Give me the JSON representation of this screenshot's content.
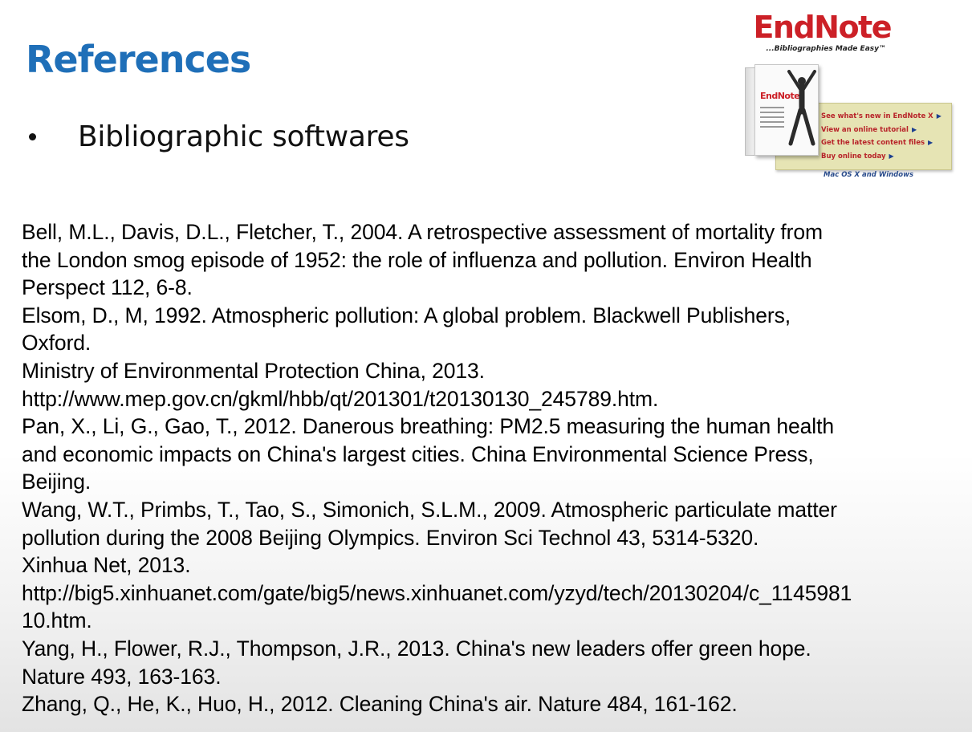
{
  "slide": {
    "title": "References",
    "bullet": "Bibliographic softwares"
  },
  "references": [
    "Bell, M.L., Davis, D.L., Fletcher, T., 2004. A retrospective assessment of mortality from",
    "the London smog episode of 1952: the role of influenza and pollution. Environ Health",
    "Perspect 112, 6-8.",
    "Elsom, D., M, 1992. Atmospheric pollution: A global problem. Blackwell Publishers,",
    "Oxford.",
    "Ministry of Environmental Protection China, 2013.",
    "http://www.mep.gov.cn/gkml/hbb/qt/201301/t20130130_245789.htm.",
    "Pan, X., Li, G., Gao, T., 2012. Danerous breathing: PM2.5 measuring the human health",
    "and economic impacts on China's largest cities. China Environmental Science Press,",
    "Beijing.",
    "Wang, W.T., Primbs, T., Tao, S., Simonich, S.L.M., 2009. Atmospheric particulate matter",
    "pollution during the 2008 Beijing Olympics. Environ Sci Technol 43, 5314-5320.",
    "Xinhua Net, 2013.",
    "http://big5.xinhuanet.com/gate/big5/news.xinhuanet.com/yzyd/tech/20130204/c_1145981",
    "10.htm.",
    "Yang, H., Flower, R.J., Thompson, J.R., 2013. China's new leaders offer green hope.",
    "Nature 493, 163-163.",
    "Zhang, Q., He, K., Huo, H., 2012. Cleaning China's air. Nature 484, 161-162."
  ],
  "endnote_ad": {
    "logo_text": "EndNote",
    "tagline": "...Bibliographies Made Easy™",
    "box_brand": "EndNote",
    "links": [
      "See what's new in EndNote X",
      "View an online tutorial",
      "Get the latest content files",
      "Buy online today"
    ],
    "platform": "Mac OS X and Windows",
    "link_arrow_icon": "triangle-right-icon",
    "colors": {
      "title_blue": "#1f6fb8",
      "endnote_red": "#cc2027",
      "promo_bg": "#e6e4b4",
      "arrow_blue": "#1d3f8f"
    }
  }
}
